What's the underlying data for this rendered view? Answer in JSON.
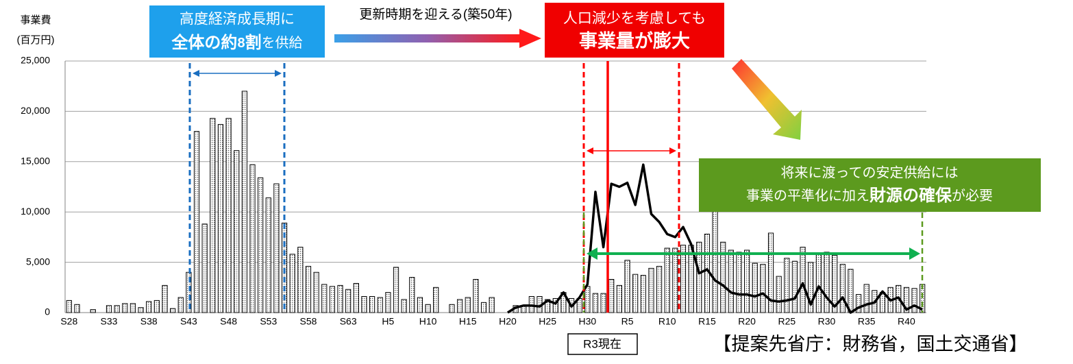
{
  "chart_data": {
    "type": "bar",
    "y_label_1": "事業費",
    "y_label_2": "(百万円)",
    "categories": [
      "S28",
      null,
      null,
      null,
      null,
      "S33",
      null,
      null,
      null,
      null,
      "S38",
      null,
      null,
      null,
      null,
      "S43",
      null,
      null,
      null,
      null,
      "S48",
      null,
      null,
      null,
      null,
      "S53",
      null,
      null,
      null,
      null,
      "S58",
      null,
      null,
      null,
      null,
      "S63",
      null,
      null,
      null,
      null,
      "H5",
      null,
      null,
      null,
      null,
      "H10",
      null,
      null,
      null,
      null,
      "H15",
      null,
      null,
      null,
      null,
      "H20",
      null,
      null,
      null,
      null,
      "H25",
      null,
      null,
      null,
      null,
      "H30",
      null,
      null,
      null,
      null,
      "R5",
      null,
      null,
      null,
      null,
      "R10",
      null,
      null,
      null,
      null,
      "R15",
      null,
      null,
      null,
      null,
      "R20",
      null,
      null,
      null,
      null,
      "R25",
      null,
      null,
      null,
      null,
      "R30",
      null,
      null,
      null,
      null,
      "R35",
      null,
      null,
      null,
      null,
      "R40",
      null,
      null
    ],
    "series": [
      {
        "type": "bar",
        "color": "#ffffff",
        "values": [
          1200,
          800,
          0,
          300,
          0,
          700,
          700,
          900,
          900,
          500,
          1100,
          1200,
          2700,
          400,
          1500,
          4000,
          18000,
          8800,
          19300,
          18700,
          19300,
          16100,
          22000,
          14700,
          13400,
          11400,
          12800,
          8900,
          5800,
          6500,
          4600,
          4000,
          2800,
          2600,
          2700,
          2300,
          2900,
          1600,
          1600,
          1500,
          2000,
          4500,
          1300,
          3500,
          1500,
          800,
          2500,
          0,
          800,
          1300,
          1500,
          3300,
          1000,
          1500,
          0,
          0,
          700,
          700,
          1600,
          1600,
          1300,
          1400,
          2000,
          1400,
          1400,
          2600,
          1900,
          1900,
          3300,
          2700,
          5200,
          3800,
          3700,
          4400,
          4600,
          6400,
          6400,
          6700,
          6700,
          7000,
          7800,
          10500,
          7000,
          6200,
          6000,
          6200,
          4900,
          4800,
          7900,
          3600,
          5400,
          5100,
          6500,
          5000,
          5800,
          6000,
          5700,
          4800,
          4300,
          1800,
          2800,
          2200,
          2000,
          2500,
          2700,
          2500,
          2400,
          2800
        ]
      },
      {
        "type": "line",
        "color": "#000000",
        "values": [
          null,
          null,
          null,
          null,
          null,
          null,
          null,
          null,
          null,
          null,
          null,
          null,
          null,
          null,
          null,
          null,
          null,
          null,
          null,
          null,
          null,
          null,
          null,
          null,
          null,
          null,
          null,
          null,
          null,
          null,
          null,
          null,
          null,
          null,
          null,
          null,
          null,
          null,
          null,
          null,
          null,
          null,
          null,
          null,
          null,
          null,
          null,
          null,
          null,
          null,
          null,
          null,
          null,
          null,
          null,
          0,
          500,
          700,
          700,
          600,
          1200,
          900,
          2000,
          600,
          1500,
          2800,
          12000,
          6500,
          12800,
          12500,
          12900,
          10700,
          14700,
          9800,
          9000,
          7800,
          7500,
          8500,
          6800,
          3900,
          4300,
          3200,
          2700,
          2000,
          1800,
          1800,
          1600,
          1900,
          1200,
          1100,
          1200,
          1400,
          2900,
          800,
          2600,
          1500,
          600,
          1500,
          0,
          500,
          800,
          1000,
          2100,
          1200,
          1500,
          300,
          700,
          300
        ]
      }
    ],
    "ylim": [
      0,
      25000
    ],
    "yticks": [
      0,
      {
        "value": 5000,
        "label": "5,000"
      },
      {
        "value": 10000,
        "label": "10,000"
      },
      {
        "value": 15000,
        "label": "15,000"
      },
      {
        "value": 20000,
        "label": "20,000"
      },
      {
        "value": 25000,
        "label": "25,000"
      }
    ],
    "grid": true,
    "annotations": {
      "blue_1": "高度経済成長期に",
      "blue_2a": "全体の約",
      "blue_2b": "8",
      "blue_2c": "割",
      "blue_2d": "を供給",
      "renewal": "更新時期を迎える(築50年)",
      "red_1": "人口減少を考慮しても",
      "red_2": "事業量が膨大",
      "green_1": "将来に渡っての安定供給には",
      "green_2a": "事業の平準化に加え",
      "green_2b": "財源の確保",
      "green_2c": "が必要",
      "now": "R3現在",
      "ministry": "【提案先省庁：財務省，国土交通省】"
    }
  }
}
